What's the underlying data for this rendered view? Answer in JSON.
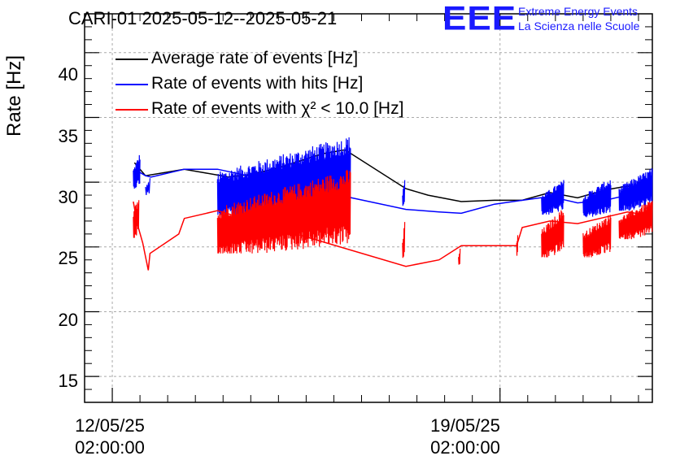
{
  "chart_data": {
    "type": "line",
    "title": "CARI-01 2025-05-12--2025-05-21",
    "ylabel": "Rate [Hz]",
    "xlabel": "",
    "ylim": [
      13,
      43
    ],
    "yticks": [
      "15",
      "20",
      "25",
      "30",
      "35",
      "40"
    ],
    "ytick_values": [
      15,
      20,
      25,
      30,
      35,
      40
    ],
    "xlim_days": [
      -0.5,
      9.75
    ],
    "xticks": [
      {
        "date": "12/05/25",
        "time": "02:00:00",
        "day": 0
      },
      {
        "date": "19/05/25",
        "time": "02:00:00",
        "day": 7
      }
    ],
    "grid": true,
    "legend_position": "top-left",
    "series": [
      {
        "name": "Average rate of events [Hz]",
        "color": "#000000",
        "points": [
          [
            0.4,
            31.5
          ],
          [
            0.6,
            30.5
          ],
          [
            1.3,
            31.0
          ],
          [
            1.7,
            30.7
          ],
          [
            2.1,
            30.4
          ],
          [
            2.5,
            30.6
          ],
          [
            3.0,
            31.1
          ],
          [
            3.5,
            31.8
          ],
          [
            3.8,
            32.2
          ],
          [
            4.2,
            32.5
          ],
          [
            5.3,
            29.5
          ],
          [
            5.7,
            29.0
          ],
          [
            6.3,
            28.5
          ],
          [
            6.9,
            28.6
          ],
          [
            7.4,
            28.6
          ],
          [
            7.9,
            29.2
          ],
          [
            8.4,
            28.8
          ],
          [
            8.9,
            29.4
          ],
          [
            9.3,
            29.7
          ],
          [
            9.6,
            29.4
          ]
        ],
        "segments": []
      },
      {
        "name": "Rate of events with hits [Hz]",
        "color": "#0000ff",
        "points": [
          [
            0.4,
            31.0
          ],
          [
            0.6,
            30.5
          ],
          [
            0.7,
            30.4
          ],
          [
            1.3,
            31.0
          ],
          [
            1.9,
            31.0
          ],
          [
            5.3,
            27.9
          ],
          [
            5.9,
            27.7
          ],
          [
            6.3,
            27.6
          ],
          [
            6.9,
            28.3
          ],
          [
            7.9,
            28.9
          ],
          [
            8.4,
            28.4
          ],
          [
            8.9,
            28.6
          ],
          [
            9.3,
            29.0
          ],
          [
            9.6,
            28.7
          ]
        ],
        "segments": [
          {
            "x0": 0.38,
            "x1": 0.5,
            "lo": 29.5,
            "hi": 32.6,
            "n": 10
          },
          {
            "x0": 0.6,
            "x1": 0.68,
            "lo": 29.0,
            "hi": 30.5,
            "n": 3
          },
          {
            "x0": 1.9,
            "x1": 4.3,
            "lo": 27.3,
            "hi": 34.3,
            "n": 190
          },
          {
            "x0": 5.24,
            "x1": 5.28,
            "lo": 28.0,
            "hi": 30.6,
            "n": 3
          },
          {
            "x0": 7.75,
            "x1": 8.15,
            "lo": 27.5,
            "hi": 30.5,
            "n": 35
          },
          {
            "x0": 8.5,
            "x1": 9.0,
            "lo": 27.3,
            "hi": 30.7,
            "n": 45
          },
          {
            "x0": 9.15,
            "x1": 9.75,
            "lo": 27.8,
            "hi": 31.5,
            "n": 55
          }
        ]
      },
      {
        "name": "Rate of events with χ² < 10.0 [Hz]",
        "color": "#ff0000",
        "points": [
          [
            0.38,
            28.5
          ],
          [
            0.45,
            26.8
          ],
          [
            0.55,
            25.3
          ],
          [
            0.65,
            23.2
          ],
          [
            0.68,
            24.5
          ],
          [
            1.2,
            26.0
          ],
          [
            1.3,
            27.2
          ],
          [
            1.9,
            27.8
          ],
          [
            5.3,
            23.5
          ],
          [
            5.9,
            24.0
          ],
          [
            6.3,
            25.1
          ],
          [
            6.9,
            25.1
          ],
          [
            7.3,
            25.1
          ],
          [
            7.4,
            26.5
          ],
          [
            7.9,
            27.0
          ],
          [
            8.4,
            26.8
          ],
          [
            8.9,
            27.3
          ],
          [
            9.3,
            27.7
          ],
          [
            9.6,
            27.5
          ]
        ],
        "segments": [
          {
            "x0": 0.38,
            "x1": 0.48,
            "lo": 25.7,
            "hi": 29.6,
            "n": 8
          },
          {
            "x0": 1.9,
            "x1": 4.3,
            "lo": 24.5,
            "hi": 31.8,
            "n": 190
          },
          {
            "x0": 5.24,
            "x1": 5.28,
            "lo": 23.8,
            "hi": 27.5,
            "n": 3
          },
          {
            "x0": 6.25,
            "x1": 6.28,
            "lo": 23.4,
            "hi": 25.1,
            "n": 2
          },
          {
            "x0": 7.3,
            "x1": 7.32,
            "lo": 24.2,
            "hi": 26.5,
            "n": 2
          },
          {
            "x0": 7.75,
            "x1": 8.15,
            "lo": 24.2,
            "hi": 28.5,
            "n": 35
          },
          {
            "x0": 8.5,
            "x1": 9.0,
            "lo": 24.2,
            "hi": 28.0,
            "n": 45
          },
          {
            "x0": 9.15,
            "x1": 9.75,
            "lo": 25.6,
            "hi": 29.0,
            "n": 55
          }
        ]
      }
    ]
  },
  "logo": {
    "letters": "EEE",
    "line1": "Extreme Energy Events",
    "line2": "La Scienza nelle Scuole",
    "color": "#1a1aff"
  }
}
